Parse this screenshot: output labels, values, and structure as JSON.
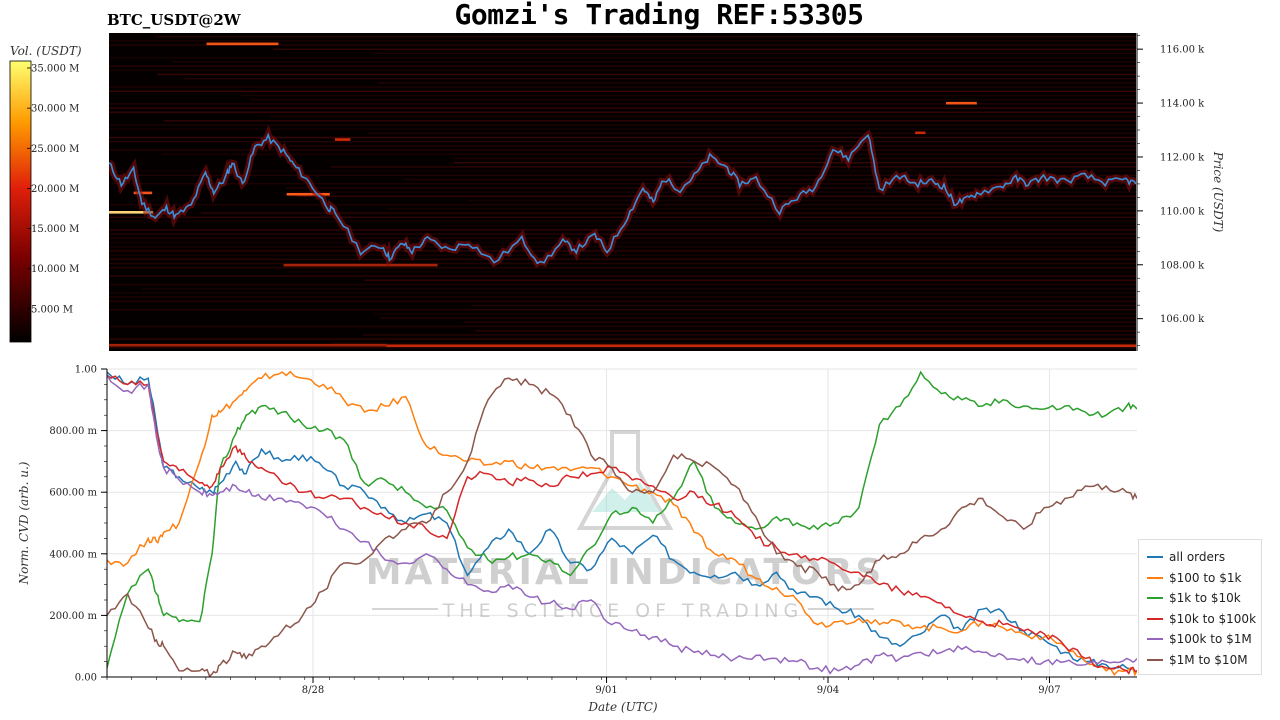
{
  "title": "Gomzi's Trading REF:53305",
  "symbol": "BTC_USDT@2W",
  "colors": {
    "all_orders": "#1f77b4",
    "usd100_1k": "#ff7f0e",
    "usd1k_10k": "#2ca02c",
    "usd10k_100k": "#d62728",
    "usd100k_1m": "#9467bd",
    "usd1m_10m": "#8c564b",
    "price_line": "#3a8fd8"
  },
  "watermark": {
    "title": "MATERIAL INDICATORS",
    "subtitle": "THE SCIENCE OF TRADING"
  },
  "chart_data": [
    {
      "type": "heatmap",
      "title": "BTC_USDT@2W",
      "ylabel": "Price (USDT)",
      "ylim": [
        104800,
        116600
      ],
      "yticks": [
        "116.00 k",
        "114.00 k",
        "112.00 k",
        "110.00 k",
        "108.00 k",
        "106.00 k"
      ],
      "ytick_values": [
        116000,
        114000,
        112000,
        110000,
        108000,
        106000
      ],
      "colorbar": {
        "label": "Vol. (USDT)",
        "ticks": [
          "35.000 M",
          "30.000 M",
          "25.000 M",
          "20.000 M",
          "15.000 M",
          "10.000 M",
          "5.000 M"
        ],
        "tick_values": [
          35,
          30,
          25,
          20,
          15,
          10,
          5
        ],
        "range": [
          0,
          35
        ]
      },
      "price_series": {
        "name": "Price",
        "t": [
          0,
          1.2,
          2.4,
          3.2,
          4.5,
          5.6,
          6.5,
          8,
          9.4,
          10.2,
          11.3,
          12,
          13,
          14.2,
          15.5,
          17,
          18,
          19.5,
          21.4,
          22,
          24.5,
          26.6,
          27.3,
          28.6,
          29.5,
          31,
          33.1,
          35,
          37.5,
          40.2,
          42,
          44.2,
          45.5,
          47.3,
          48.5,
          50.5,
          52,
          53,
          54,
          55.6,
          57,
          58.5,
          60.2,
          61.4,
          63,
          65.3,
          67,
          68.8,
          70.5,
          72,
          73.9,
          75,
          77,
          78.5,
          80.1,
          81.3,
          82.3,
          83.4,
          84.5,
          86.8,
          88.3,
          89.5,
          91,
          93,
          95,
          97,
          99,
          100
        ],
        "price": [
          111750,
          111000,
          111500,
          110300,
          109750,
          110100,
          109800,
          110200,
          111400,
          110700,
          111200,
          111800,
          111000,
          112350,
          112700,
          112200,
          111700,
          111050,
          110100,
          109950,
          108500,
          108700,
          108250,
          108800,
          108500,
          108950,
          108550,
          108850,
          108100,
          108950,
          108000,
          108850,
          108550,
          109100,
          108500,
          109800,
          110850,
          110300,
          111200,
          110800,
          111300,
          112000,
          111600,
          111000,
          111200,
          110000,
          110500,
          110900,
          112300,
          111950,
          112900,
          110800,
          111300,
          111000,
          111100,
          110900,
          110300,
          110400,
          110650,
          110900,
          111200,
          111000,
          111250,
          111100,
          111300,
          111050,
          111150,
          111000
        ]
      },
      "orderbook_levels": [
        {
          "price": 116200,
          "t0": 9.5,
          "t1": 16.5,
          "intensity": 0.85
        },
        {
          "price": 114000,
          "t0": 81.5,
          "t1": 84.5,
          "intensity": 0.85
        },
        {
          "price": 112900,
          "t0": 78.5,
          "t1": 79.5,
          "intensity": 0.75
        },
        {
          "price": 112650,
          "t0": 22,
          "t1": 23.5,
          "intensity": 0.8
        },
        {
          "price": 110670,
          "t0": 2.4,
          "t1": 4.2,
          "intensity": 0.85
        },
        {
          "price": 110620,
          "t0": 17.3,
          "t1": 21.5,
          "intensity": 0.9
        },
        {
          "price": 109950,
          "t0": 0,
          "t1": 4.3,
          "intensity": 1.0
        },
        {
          "price": 107990,
          "t0": 17,
          "t1": 32,
          "intensity": 0.6
        },
        {
          "price": 105000,
          "t0": 27,
          "t1": 100,
          "intensity": 0.75
        },
        {
          "price": 105020,
          "t0": 0,
          "t1": 27,
          "intensity": 0.6
        }
      ]
    },
    {
      "type": "line",
      "xlabel": "Date (UTC)",
      "ylabel": "Norm. CVD (arb. u.)",
      "ylim": [
        0,
        1
      ],
      "xlim": [
        0,
        100
      ],
      "xticks": [
        "8/28",
        "9/01",
        "9/04",
        "9/07"
      ],
      "xtick_positions": [
        20,
        48.5,
        70,
        91.5
      ],
      "yticks": [
        "1.00",
        "800.00 m",
        "600.00 m",
        "400.00 m",
        "200.00 m",
        "0.00"
      ],
      "ytick_values": [
        1.0,
        0.8,
        0.6,
        0.4,
        0.2,
        0.0
      ],
      "grid": true,
      "legend_placement": "bottom-right",
      "x": [
        0,
        2,
        4,
        4.8,
        5.5,
        7,
        9,
        10.2,
        11,
        12.5,
        13.5,
        15,
        17,
        19,
        21,
        23,
        25,
        27,
        29,
        31,
        33,
        35,
        37,
        39,
        41,
        43,
        45,
        47,
        49,
        51,
        53,
        55,
        57,
        59,
        61,
        63,
        65,
        67,
        69,
        71,
        73,
        75,
        77,
        79,
        81,
        83,
        85,
        87,
        89,
        91,
        93,
        95,
        97,
        99,
        100
      ],
      "series": [
        {
          "name": "all orders",
          "key": "all_orders",
          "values": [
            0.99,
            0.95,
            0.97,
            0.82,
            0.68,
            0.65,
            0.61,
            0.6,
            0.63,
            0.7,
            0.66,
            0.74,
            0.7,
            0.72,
            0.68,
            0.62,
            0.6,
            0.55,
            0.5,
            0.53,
            0.5,
            0.33,
            0.42,
            0.48,
            0.4,
            0.48,
            0.37,
            0.35,
            0.45,
            0.4,
            0.46,
            0.38,
            0.34,
            0.33,
            0.34,
            0.3,
            0.34,
            0.27,
            0.26,
            0.22,
            0.2,
            0.13,
            0.1,
            0.14,
            0.2,
            0.15,
            0.22,
            0.21,
            0.15,
            0.12,
            0.08,
            0.05,
            0.04,
            0.03,
            0.02
          ]
        },
        {
          "name": "$100 to $1k",
          "key": "usd100_1k",
          "values": [
            0.38,
            0.37,
            0.45,
            0.44,
            0.47,
            0.5,
            0.7,
            0.85,
            0.86,
            0.9,
            0.93,
            0.97,
            0.99,
            0.97,
            0.95,
            0.9,
            0.86,
            0.88,
            0.91,
            0.75,
            0.72,
            0.7,
            0.69,
            0.7,
            0.68,
            0.68,
            0.67,
            0.68,
            0.65,
            0.62,
            0.6,
            0.56,
            0.47,
            0.4,
            0.38,
            0.32,
            0.29,
            0.25,
            0.17,
            0.18,
            0.19,
            0.17,
            0.18,
            0.16,
            0.16,
            0.15,
            0.18,
            0.16,
            0.14,
            0.13,
            0.1,
            0.05,
            0.02,
            0.02,
            0.02
          ]
        },
        {
          "name": "$1k to $10k",
          "key": "usd1k_10k",
          "values": [
            0.03,
            0.27,
            0.35,
            0.27,
            0.2,
            0.18,
            0.18,
            0.4,
            0.68,
            0.79,
            0.85,
            0.88,
            0.86,
            0.82,
            0.8,
            0.77,
            0.63,
            0.64,
            0.6,
            0.55,
            0.54,
            0.42,
            0.38,
            0.39,
            0.4,
            0.38,
            0.33,
            0.42,
            0.53,
            0.55,
            0.5,
            0.58,
            0.7,
            0.55,
            0.5,
            0.48,
            0.52,
            0.5,
            0.48,
            0.5,
            0.55,
            0.82,
            0.88,
            0.99,
            0.92,
            0.9,
            0.88,
            0.9,
            0.88,
            0.87,
            0.88,
            0.86,
            0.85,
            0.88,
            0.87
          ]
        },
        {
          "name": "$10k to $100k",
          "key": "usd10k_100k",
          "values": [
            0.98,
            0.95,
            0.95,
            0.8,
            0.7,
            0.67,
            0.63,
            0.62,
            0.68,
            0.75,
            0.71,
            0.68,
            0.63,
            0.6,
            0.58,
            0.58,
            0.55,
            0.52,
            0.5,
            0.48,
            0.45,
            0.65,
            0.66,
            0.63,
            0.64,
            0.62,
            0.65,
            0.66,
            0.68,
            0.64,
            0.62,
            0.58,
            0.6,
            0.56,
            0.52,
            0.45,
            0.42,
            0.4,
            0.38,
            0.36,
            0.34,
            0.3,
            0.28,
            0.26,
            0.24,
            0.2,
            0.18,
            0.17,
            0.15,
            0.14,
            0.1,
            0.06,
            0.03,
            0.02,
            0.02
          ]
        },
        {
          "name": "$100k to $1M",
          "key": "usd100k_1m",
          "values": [
            0.98,
            0.93,
            0.95,
            0.78,
            0.68,
            0.64,
            0.6,
            0.59,
            0.6,
            0.62,
            0.6,
            0.58,
            0.58,
            0.56,
            0.53,
            0.48,
            0.44,
            0.38,
            0.37,
            0.4,
            0.35,
            0.3,
            0.28,
            0.3,
            0.26,
            0.24,
            0.22,
            0.25,
            0.17,
            0.15,
            0.13,
            0.1,
            0.08,
            0.07,
            0.06,
            0.07,
            0.06,
            0.05,
            0.03,
            0.02,
            0.04,
            0.07,
            0.06,
            0.08,
            0.08,
            0.09,
            0.08,
            0.07,
            0.06,
            0.05,
            0.05,
            0.04,
            0.05,
            0.06,
            0.06
          ]
        },
        {
          "name": "$1M to $10M",
          "key": "usd1m_10m",
          "values": [
            0.2,
            0.27,
            0.16,
            0.12,
            0.1,
            0.02,
            0.02,
            0.01,
            0.04,
            0.08,
            0.06,
            0.1,
            0.15,
            0.2,
            0.28,
            0.37,
            0.38,
            0.45,
            0.48,
            0.5,
            0.6,
            0.7,
            0.9,
            0.97,
            0.95,
            0.92,
            0.85,
            0.72,
            0.68,
            0.6,
            0.6,
            0.72,
            0.7,
            0.68,
            0.62,
            0.52,
            0.4,
            0.36,
            0.34,
            0.28,
            0.3,
            0.38,
            0.4,
            0.45,
            0.48,
            0.55,
            0.58,
            0.52,
            0.48,
            0.55,
            0.58,
            0.62,
            0.62,
            0.6,
            0.58
          ]
        }
      ]
    }
  ]
}
